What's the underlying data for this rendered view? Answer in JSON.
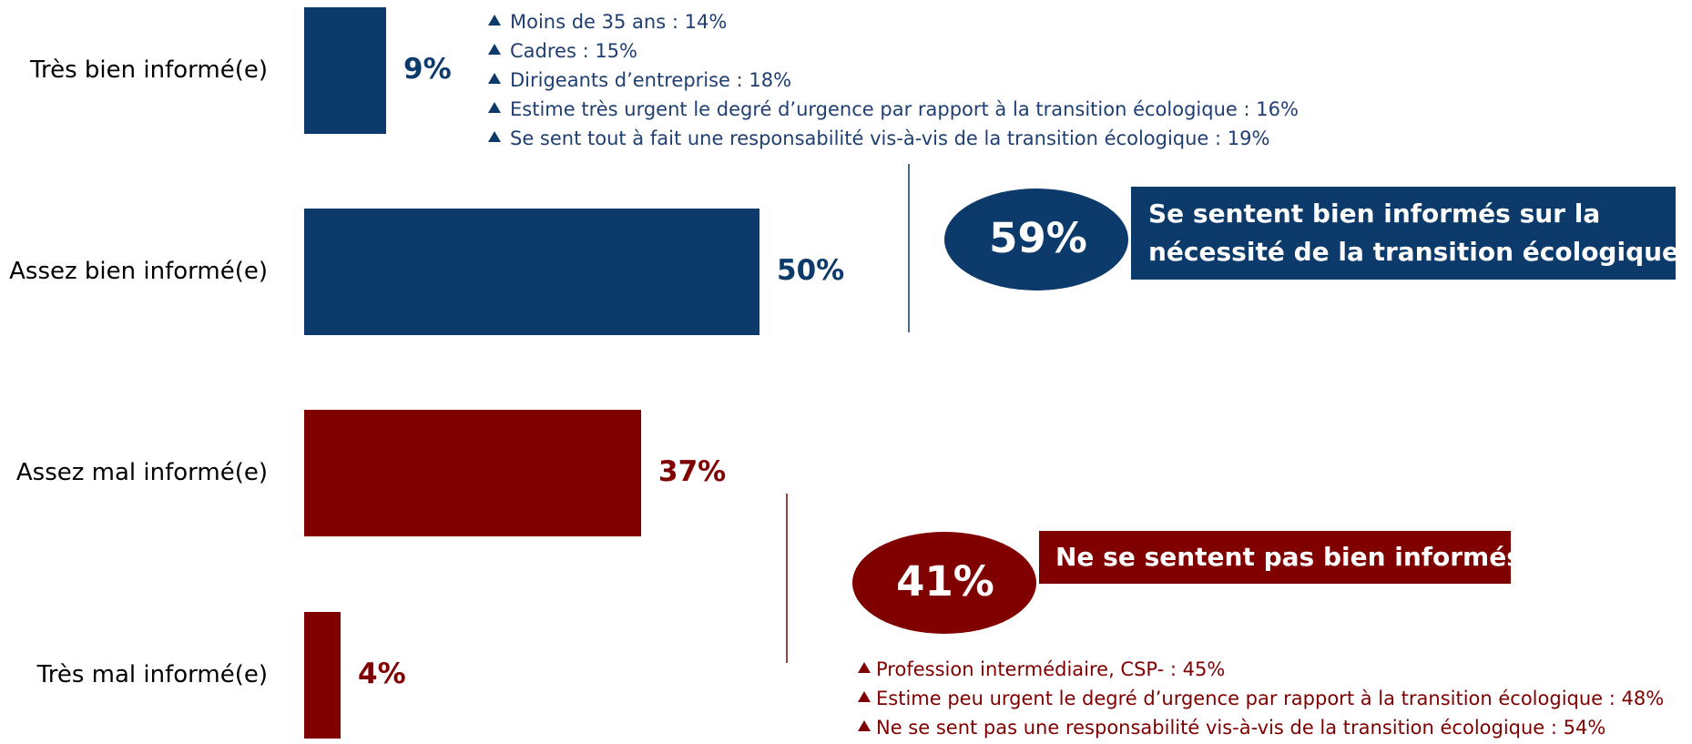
{
  "chart_data": {
    "type": "bar",
    "orientation": "horizontal",
    "categories": [
      "Très bien informé(e)",
      "Assez bien informé(e)",
      "Assez mal informé(e)",
      "Très mal informé(e)"
    ],
    "values": [
      9,
      50,
      37,
      4
    ],
    "value_labels": [
      "9%",
      "50%",
      "37%",
      "4%"
    ],
    "colors": [
      "#0b3a6b",
      "#0b3a6b",
      "#800000",
      "#800000"
    ],
    "highlights_top": [
      "Moins de 35 ans : 14%",
      "Cadres : 15%",
      "Dirigeants d’entreprise : 18%",
      "Estime très urgent le degré d’urgence par rapport à la transition écologique : 16%",
      "Se sent tout à fait une responsabilité vis-à-vis de la transition écologique : 19%"
    ],
    "summary_top": {
      "value": "59%",
      "text": [
        "Se sentent bien informés sur la",
        "nécessité de la transition écologique"
      ]
    },
    "summary_bottom": {
      "value": "41%",
      "text": [
        "Ne se sentent pas bien informés"
      ]
    },
    "highlights_bottom": [
      "Profession intermédiaire, CSP- : 45%",
      "Estime peu urgent le degré d’urgence par rapport à la transition écologique : 48%",
      "Ne se sent pas une responsabilité vis-à-vis de la transition écologique : 54%"
    ]
  }
}
